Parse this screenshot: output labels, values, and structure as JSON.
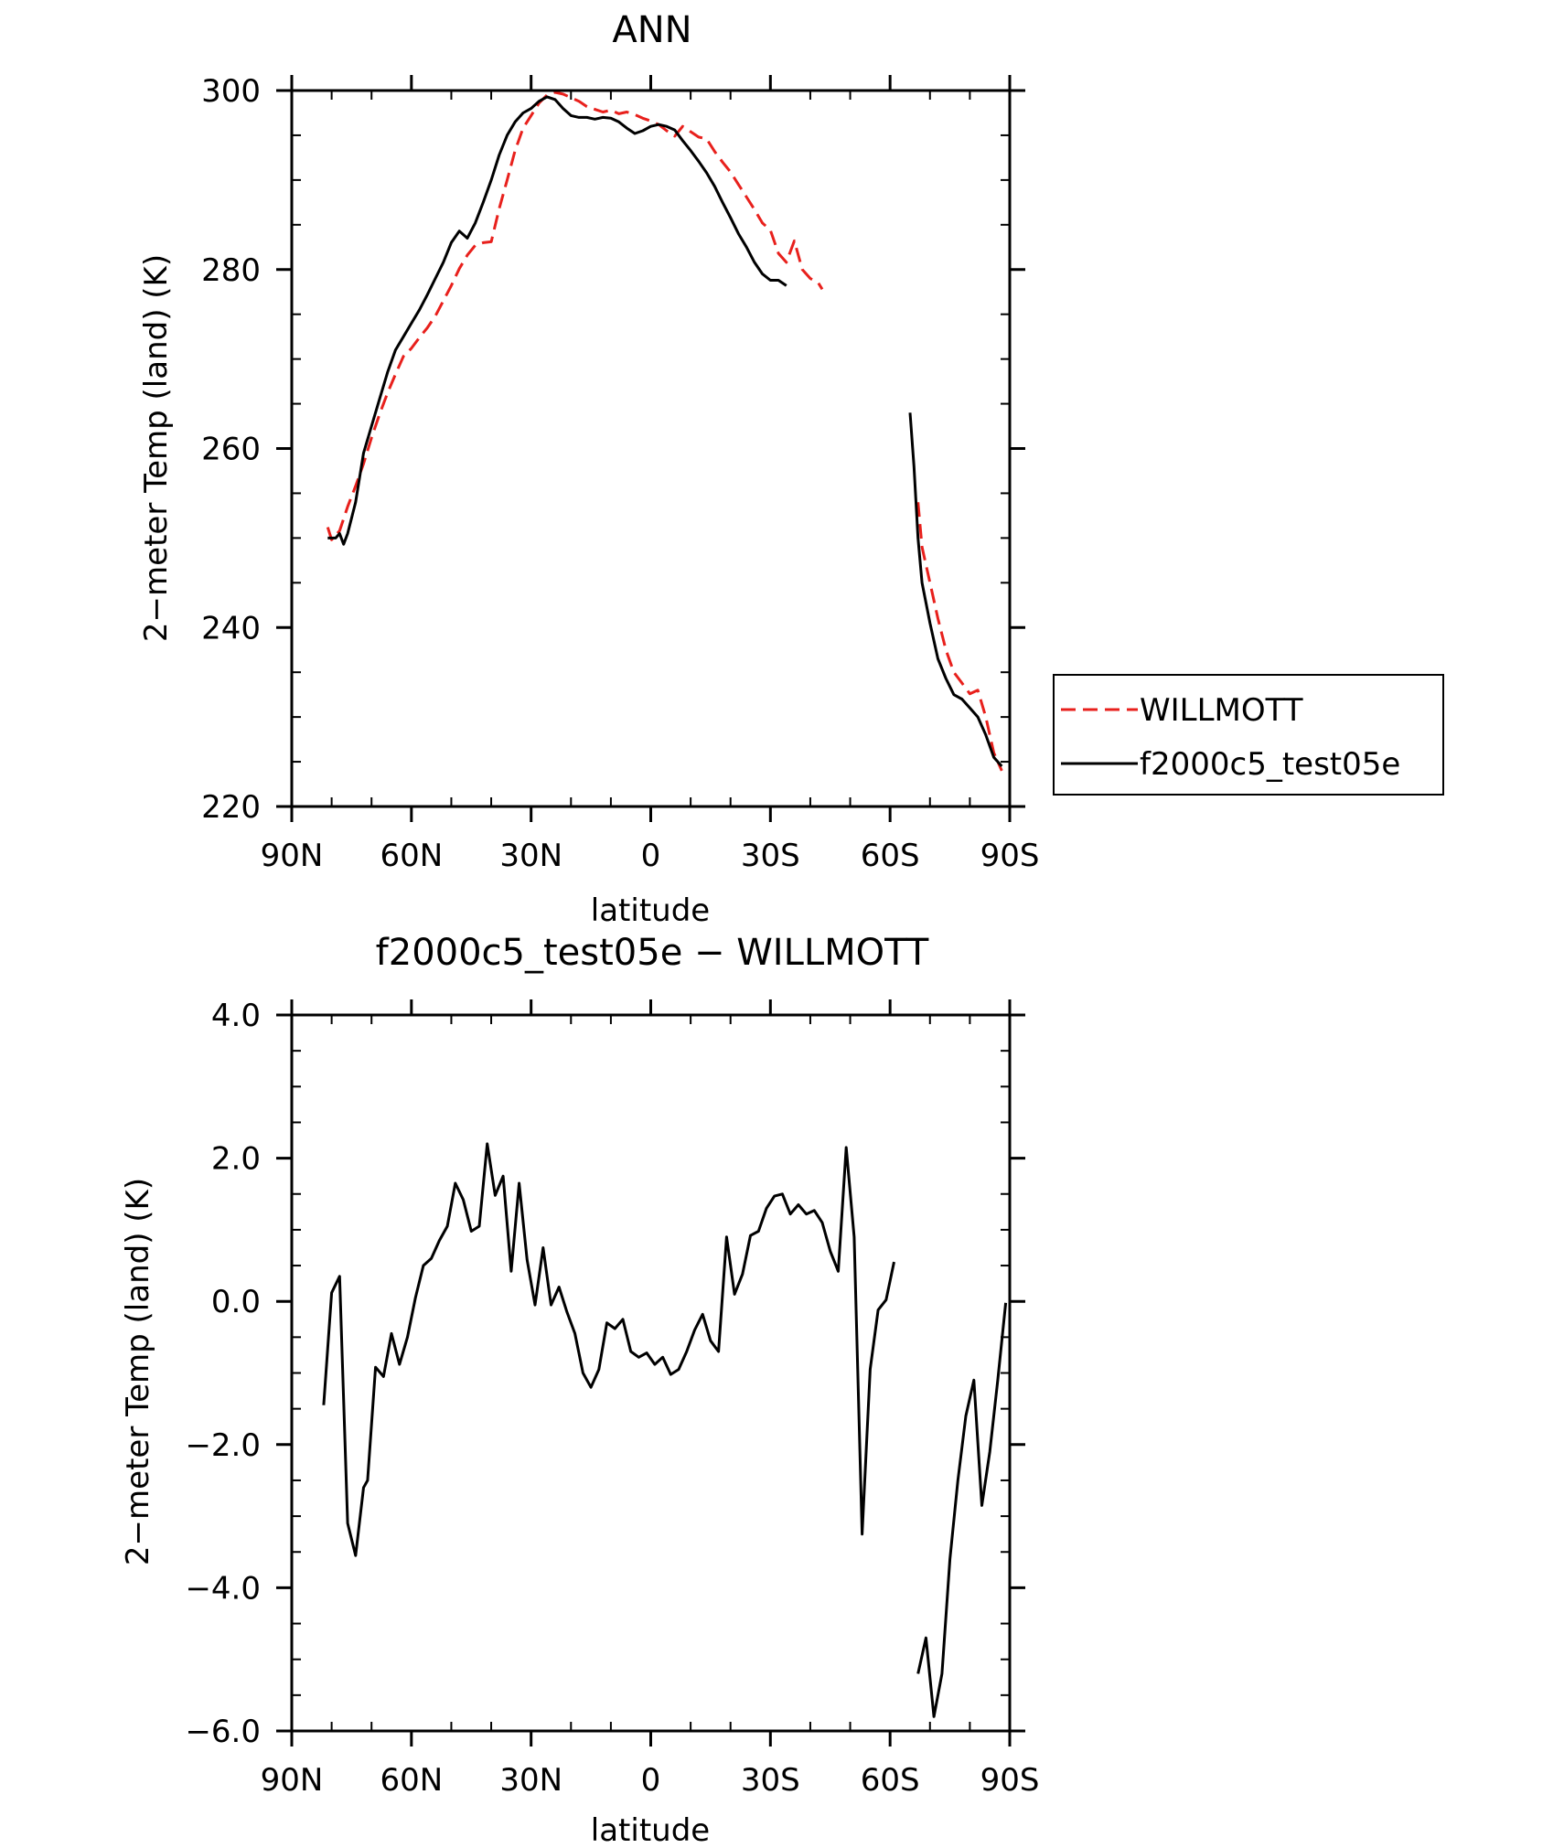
{
  "chart_data": [
    {
      "type": "line",
      "title": "ANN",
      "xlabel": "latitude",
      "ylabel": "2−meter Temp (land) (K)",
      "xlim": [
        90,
        -90
      ],
      "ylim": [
        220,
        300
      ],
      "xticks": [
        90,
        60,
        30,
        0,
        -30,
        -60,
        -90
      ],
      "xticklabels": [
        "90N",
        "60N",
        "30N",
        "0",
        "30S",
        "60S",
        "90S"
      ],
      "yticks": [
        220,
        240,
        260,
        280,
        300
      ],
      "yticklabels": [
        "220",
        "240",
        "260",
        "280",
        "300"
      ],
      "legend": {
        "position": "right",
        "entries": [
          "WILLMOTT",
          "f2000c5_test05e"
        ]
      },
      "series": [
        {
          "name": "WILLMOTT",
          "color": "#e8201c",
          "dash": "dashed",
          "segments": [
            [
              [
                81,
                251.2
              ],
              [
                80,
                249.8
              ],
              [
                78,
                250.8
              ],
              [
                76,
                253.5
              ],
              [
                74,
                255.8
              ],
              [
                72,
                258.3
              ],
              [
                70,
                261.2
              ],
              [
                68,
                263.8
              ],
              [
                66,
                266.2
              ],
              [
                64,
                268.3
              ],
              [
                62,
                270.3
              ],
              [
                60,
                271.2
              ],
              [
                58,
                272.4
              ],
              [
                56,
                273.5
              ],
              [
                54,
                274.8
              ],
              [
                52,
                276.5
              ],
              [
                50,
                278.2
              ],
              [
                48,
                280.1
              ],
              [
                46,
                281.6
              ],
              [
                44,
                282.7
              ],
              [
                42,
                283.0
              ],
              [
                40,
                283.1
              ],
              [
                38,
                286.8
              ],
              [
                36,
                290.0
              ],
              [
                34,
                293.3
              ],
              [
                32,
                295.8
              ],
              [
                30,
                297.2
              ],
              [
                28,
                298.6
              ],
              [
                26,
                299.5
              ],
              [
                24,
                299.8
              ],
              [
                22,
                299.6
              ],
              [
                20,
                299.2
              ],
              [
                18,
                298.8
              ],
              [
                16,
                298.2
              ],
              [
                14,
                297.9
              ],
              [
                12,
                297.6
              ],
              [
                10,
                297.8
              ],
              [
                8,
                297.4
              ],
              [
                6,
                297.6
              ],
              [
                4,
                297.3
              ],
              [
                2,
                296.9
              ],
              [
                0,
                296.6
              ],
              [
                -2,
                296.2
              ],
              [
                -4,
                295.5
              ],
              [
                -6,
                294.9
              ],
              [
                -8,
                296.0
              ],
              [
                -10,
                295.4
              ],
              [
                -12,
                294.8
              ],
              [
                -14,
                294.6
              ],
              [
                -16,
                293.2
              ],
              [
                -18,
                292.0
              ],
              [
                -20,
                290.9
              ],
              [
                -22,
                289.5
              ],
              [
                -24,
                288.1
              ],
              [
                -26,
                286.7
              ],
              [
                -28,
                285.2
              ],
              [
                -30,
                284.4
              ],
              [
                -32,
                281.8
              ],
              [
                -34,
                280.8
              ],
              [
                -36,
                283.2
              ],
              [
                -38,
                280.0
              ],
              [
                -40,
                279.0
              ],
              [
                -42,
                278.5
              ],
              [
                -43,
                277.8
              ]
            ],
            [
              [
                -67,
                254.0
              ],
              [
                -68,
                249.0
              ],
              [
                -70,
                245.0
              ],
              [
                -72,
                241.0
              ],
              [
                -74,
                237.5
              ],
              [
                -76,
                235.0
              ],
              [
                -78,
                233.8
              ],
              [
                -80,
                232.6
              ],
              [
                -82,
                233.0
              ],
              [
                -84,
                230.0
              ],
              [
                -86,
                226.0
              ],
              [
                -88,
                224.0
              ]
            ]
          ]
        },
        {
          "name": "f2000c5_test05e",
          "color": "#000000",
          "dash": "solid",
          "segments": [
            [
              [
                81,
                250.0
              ],
              [
                79,
                250.0
              ],
              [
                78,
                250.5
              ],
              [
                77,
                249.3
              ],
              [
                76,
                250.5
              ],
              [
                74,
                254.0
              ],
              [
                72,
                259.5
              ],
              [
                70,
                262.5
              ],
              [
                68,
                265.5
              ],
              [
                66,
                268.5
              ],
              [
                64,
                271.0
              ],
              [
                62,
                272.5
              ],
              [
                60,
                274.0
              ],
              [
                58,
                275.5
              ],
              [
                56,
                277.2
              ],
              [
                54,
                279.0
              ],
              [
                52,
                280.8
              ],
              [
                50,
                283.0
              ],
              [
                48,
                284.3
              ],
              [
                46,
                283.5
              ],
              [
                44,
                285.2
              ],
              [
                42,
                287.5
              ],
              [
                40,
                290.0
              ],
              [
                38,
                292.8
              ],
              [
                36,
                295.0
              ],
              [
                34,
                296.5
              ],
              [
                32,
                297.5
              ],
              [
                30,
                298.0
              ],
              [
                28,
                298.8
              ],
              [
                26,
                299.3
              ],
              [
                24,
                299.0
              ],
              [
                22,
                298.0
              ],
              [
                20,
                297.2
              ],
              [
                18,
                297.0
              ],
              [
                16,
                297.0
              ],
              [
                14,
                296.8
              ],
              [
                12,
                297.0
              ],
              [
                10,
                296.9
              ],
              [
                8,
                296.5
              ],
              [
                6,
                295.8
              ],
              [
                4,
                295.2
              ],
              [
                2,
                295.5
              ],
              [
                0,
                296.0
              ],
              [
                -2,
                296.2
              ],
              [
                -4,
                296.0
              ],
              [
                -6,
                295.6
              ],
              [
                -8,
                294.4
              ],
              [
                -10,
                293.3
              ],
              [
                -12,
                292.1
              ],
              [
                -14,
                290.8
              ],
              [
                -16,
                289.3
              ],
              [
                -18,
                287.5
              ],
              [
                -20,
                285.8
              ],
              [
                -22,
                284.0
              ],
              [
                -24,
                282.5
              ],
              [
                -26,
                280.8
              ],
              [
                -28,
                279.5
              ],
              [
                -30,
                278.8
              ],
              [
                -32,
                278.8
              ],
              [
                -34,
                278.2
              ]
            ],
            [
              [
                -65,
                264.0
              ],
              [
                -66,
                258.0
              ],
              [
                -67,
                250.0
              ],
              [
                -68,
                245.0
              ],
              [
                -70,
                240.5
              ],
              [
                -72,
                236.5
              ],
              [
                -74,
                234.3
              ],
              [
                -76,
                232.5
              ],
              [
                -78,
                232.0
              ],
              [
                -80,
                231.0
              ],
              [
                -82,
                230.0
              ],
              [
                -84,
                228.0
              ],
              [
                -86,
                225.5
              ],
              [
                -88,
                224.5
              ]
            ]
          ]
        }
      ]
    },
    {
      "type": "line",
      "title": "f2000c5_test05e − WILLMOTT",
      "xlabel": "latitude",
      "ylabel": "2−meter Temp (land) (K)",
      "xlim": [
        90,
        -90
      ],
      "ylim": [
        -6.0,
        4.0
      ],
      "xticks": [
        90,
        60,
        30,
        0,
        -30,
        -60,
        -90
      ],
      "xticklabels": [
        "90N",
        "60N",
        "30N",
        "0",
        "30S",
        "60S",
        "90S"
      ],
      "yticks": [
        -6,
        -4,
        -2,
        0,
        2,
        4
      ],
      "yticklabels": [
        "−6.0",
        "−4.0",
        "−2.0",
        "0.0",
        "2.0",
        "4.0"
      ],
      "series": [
        {
          "color": "#000000",
          "dash": "solid",
          "segments": [
            [
              [
                82,
                -1.45
              ],
              [
                80,
                0.12
              ],
              [
                78,
                0.35
              ],
              [
                76,
                -3.1
              ],
              [
                74,
                -3.55
              ],
              [
                72,
                -2.6
              ],
              [
                71,
                -2.5
              ],
              [
                69,
                -0.92
              ],
              [
                67,
                -1.05
              ],
              [
                65,
                -0.45
              ],
              [
                63,
                -0.88
              ],
              [
                61,
                -0.5
              ],
              [
                59,
                0.05
              ],
              [
                57,
                0.5
              ],
              [
                55,
                0.6
              ],
              [
                53,
                0.85
              ],
              [
                51,
                1.05
              ],
              [
                49,
                1.65
              ],
              [
                47,
                1.42
              ],
              [
                45,
                0.98
              ],
              [
                43,
                1.05
              ],
              [
                41,
                2.2
              ],
              [
                39,
                1.48
              ],
              [
                37,
                1.75
              ],
              [
                35,
                0.42
              ],
              [
                33,
                1.65
              ],
              [
                31,
                0.58
              ],
              [
                29,
                -0.05
              ],
              [
                27,
                0.75
              ],
              [
                25,
                -0.05
              ],
              [
                23,
                0.2
              ],
              [
                21,
                -0.15
              ],
              [
                19,
                -0.45
              ],
              [
                17,
                -1.0
              ],
              [
                15,
                -1.2
              ],
              [
                13,
                -0.95
              ],
              [
                11,
                -0.3
              ],
              [
                9,
                -0.38
              ],
              [
                7,
                -0.25
              ],
              [
                5,
                -0.7
              ],
              [
                3,
                -0.78
              ],
              [
                1,
                -0.72
              ],
              [
                -1,
                -0.88
              ],
              [
                -3,
                -0.78
              ],
              [
                -5,
                -1.02
              ],
              [
                -7,
                -0.95
              ],
              [
                -9,
                -0.7
              ],
              [
                -11,
                -0.4
              ],
              [
                -13,
                -0.18
              ],
              [
                -15,
                -0.55
              ],
              [
                -17,
                -0.7
              ],
              [
                -19,
                0.9
              ],
              [
                -21,
                0.1
              ],
              [
                -23,
                0.38
              ],
              [
                -25,
                0.92
              ],
              [
                -27,
                0.98
              ],
              [
                -29,
                1.3
              ],
              [
                -31,
                1.47
              ],
              [
                -33,
                1.5
              ],
              [
                -35,
                1.22
              ],
              [
                -37,
                1.35
              ],
              [
                -39,
                1.22
              ],
              [
                -41,
                1.27
              ],
              [
                -43,
                1.1
              ],
              [
                -45,
                0.7
              ],
              [
                -47,
                0.42
              ],
              [
                -49,
                2.15
              ],
              [
                -51,
                0.9
              ],
              [
                -53,
                -3.25
              ],
              [
                -55,
                -0.95
              ],
              [
                -57,
                -0.12
              ],
              [
                -59,
                0.02
              ],
              [
                -61,
                0.55
              ]
            ],
            [
              [
                -67,
                -5.2
              ],
              [
                -69,
                -4.7
              ],
              [
                -71,
                -5.8
              ],
              [
                -73,
                -5.2
              ],
              [
                -75,
                -3.6
              ],
              [
                -77,
                -2.5
              ],
              [
                -79,
                -1.6
              ],
              [
                -81,
                -1.1
              ],
              [
                -83,
                -2.85
              ],
              [
                -85,
                -2.1
              ],
              [
                -87,
                -1.1
              ],
              [
                -89,
                -0.02
              ]
            ]
          ]
        }
      ]
    }
  ]
}
